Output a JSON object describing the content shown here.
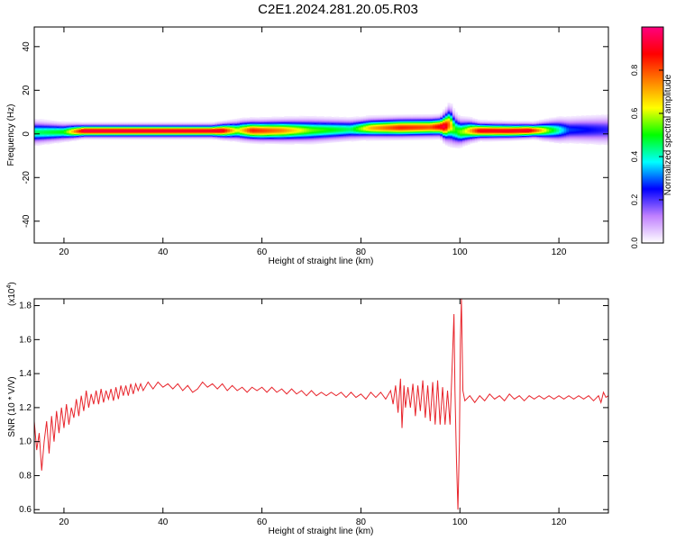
{
  "title": "C2E1.2024.281.20.05.R03",
  "colors": {
    "snr_line": "#e8242b",
    "background": "#ffffff",
    "colorbar_stops": [
      "#ffffff",
      "#c080ff",
      "#0000ff",
      "#00ffff",
      "#00ff00",
      "#ffff00",
      "#ff8000",
      "#ff0000",
      "#ff007f"
    ]
  },
  "chart_data": [
    {
      "type": "heatmap",
      "xlabel": "Height of straight line (km)",
      "ylabel": "Frequency (Hz)",
      "xlim": [
        14,
        130
      ],
      "ylim": [
        -50,
        49
      ],
      "xticks": [
        20,
        40,
        60,
        80,
        100,
        120
      ],
      "yticks": [
        -40,
        -20,
        0,
        20,
        40
      ],
      "colorbar": {
        "label": "Normalized spectral amplitude",
        "range": [
          0,
          1
        ],
        "ticks": [
          "0.0",
          "0.2",
          "0.4",
          "0.6",
          "0.8"
        ]
      },
      "ridge_center_hz": [
        [
          14,
          0.8
        ],
        [
          20,
          1.0
        ],
        [
          24,
          1.5
        ],
        [
          30,
          1.5
        ],
        [
          40,
          1.5
        ],
        [
          50,
          1.5
        ],
        [
          56,
          1.8
        ],
        [
          60,
          1.6
        ],
        [
          70,
          1.8
        ],
        [
          78,
          2.2
        ],
        [
          82,
          2.8
        ],
        [
          88,
          3.0
        ],
        [
          94,
          3.2
        ],
        [
          97,
          3.5
        ],
        [
          98,
          4.5
        ],
        [
          99,
          2.0
        ],
        [
          100,
          1.0
        ],
        [
          102,
          1.6
        ],
        [
          110,
          1.5
        ],
        [
          118,
          1.8
        ],
        [
          124,
          2.0
        ],
        [
          130,
          2.0
        ]
      ],
      "ridge_width_hz": [
        [
          14,
          3.5
        ],
        [
          24,
          2.0
        ],
        [
          50,
          2.0
        ],
        [
          56,
          3.0
        ],
        [
          70,
          3.5
        ],
        [
          80,
          3.0
        ],
        [
          96,
          3.0
        ],
        [
          98,
          5.5
        ],
        [
          100,
          4.0
        ],
        [
          104,
          2.5
        ],
        [
          115,
          2.2
        ],
        [
          120,
          3.5
        ],
        [
          130,
          4.5
        ]
      ],
      "ridge_peak_amplitude": [
        [
          14,
          0.45
        ],
        [
          20,
          0.5
        ],
        [
          24,
          0.95
        ],
        [
          52,
          0.92
        ],
        [
          55,
          0.6
        ],
        [
          58,
          0.85
        ],
        [
          64,
          0.75
        ],
        [
          70,
          0.55
        ],
        [
          78,
          0.45
        ],
        [
          82,
          0.7
        ],
        [
          88,
          0.85
        ],
        [
          94,
          0.8
        ],
        [
          97,
          0.95
        ],
        [
          99,
          0.5
        ],
        [
          101,
          0.6
        ],
        [
          104,
          0.9
        ],
        [
          114,
          0.92
        ],
        [
          118,
          0.55
        ],
        [
          122,
          0.28
        ],
        [
          130,
          0.22
        ]
      ]
    },
    {
      "type": "line",
      "xlabel": "Height of straight line (km)",
      "ylabel": "SNR (10 * V/V)",
      "multiplier_label": "(x10",
      "multiplier_exponent": "4",
      "multiplier_close": ")",
      "xlim": [
        14,
        130
      ],
      "ylim": [
        0.58,
        1.84
      ],
      "xticks": [
        20,
        40,
        60,
        80,
        100,
        120
      ],
      "yticks": [
        "0.6",
        "0.8",
        "1.0",
        "1.2",
        "1.4",
        "1.6",
        "1.8"
      ],
      "series": [
        {
          "values": [
            [
              14,
              1.12
            ],
            [
              14.5,
              0.95
            ],
            [
              15,
              1.05
            ],
            [
              15.5,
              0.83
            ],
            [
              16,
              1.0
            ],
            [
              16.5,
              1.12
            ],
            [
              17,
              0.93
            ],
            [
              17.5,
              1.15
            ],
            [
              18,
              1.0
            ],
            [
              18.5,
              1.18
            ],
            [
              19,
              1.05
            ],
            [
              19.5,
              1.2
            ],
            [
              20,
              1.08
            ],
            [
              20.5,
              1.22
            ],
            [
              21,
              1.1
            ],
            [
              21.5,
              1.2
            ],
            [
              22,
              1.14
            ],
            [
              22.5,
              1.25
            ],
            [
              23,
              1.15
            ],
            [
              23.5,
              1.27
            ],
            [
              24,
              1.18
            ],
            [
              24.5,
              1.3
            ],
            [
              25,
              1.2
            ],
            [
              25.5,
              1.28
            ],
            [
              26,
              1.22
            ],
            [
              26.5,
              1.3
            ],
            [
              27,
              1.22
            ],
            [
              27.5,
              1.31
            ],
            [
              28,
              1.23
            ],
            [
              28.5,
              1.3
            ],
            [
              29,
              1.25
            ],
            [
              29.5,
              1.31
            ],
            [
              30,
              1.24
            ],
            [
              30.5,
              1.32
            ],
            [
              31,
              1.25
            ],
            [
              31.5,
              1.33
            ],
            [
              32,
              1.27
            ],
            [
              32.5,
              1.33
            ],
            [
              33,
              1.27
            ],
            [
              33.5,
              1.34
            ],
            [
              34,
              1.28
            ],
            [
              34.5,
              1.34
            ],
            [
              35,
              1.3
            ],
            [
              35.5,
              1.34
            ],
            [
              36,
              1.3
            ],
            [
              37,
              1.35
            ],
            [
              38,
              1.31
            ],
            [
              39,
              1.35
            ],
            [
              40,
              1.32
            ],
            [
              41,
              1.34
            ],
            [
              42,
              1.31
            ],
            [
              43,
              1.34
            ],
            [
              44,
              1.3
            ],
            [
              45,
              1.33
            ],
            [
              46,
              1.29
            ],
            [
              47,
              1.31
            ],
            [
              48,
              1.35
            ],
            [
              49,
              1.32
            ],
            [
              50,
              1.34
            ],
            [
              51,
              1.31
            ],
            [
              52,
              1.34
            ],
            [
              53,
              1.3
            ],
            [
              54,
              1.33
            ],
            [
              55,
              1.3
            ],
            [
              56,
              1.32
            ],
            [
              57,
              1.29
            ],
            [
              58,
              1.32
            ],
            [
              59,
              1.3
            ],
            [
              60,
              1.32
            ],
            [
              61,
              1.29
            ],
            [
              62,
              1.32
            ],
            [
              63,
              1.29
            ],
            [
              64,
              1.31
            ],
            [
              65,
              1.28
            ],
            [
              66,
              1.31
            ],
            [
              67,
              1.28
            ],
            [
              68,
              1.3
            ],
            [
              69,
              1.27
            ],
            [
              70,
              1.3
            ],
            [
              71,
              1.27
            ],
            [
              72,
              1.29
            ],
            [
              73,
              1.27
            ],
            [
              74,
              1.29
            ],
            [
              75,
              1.27
            ],
            [
              76,
              1.29
            ],
            [
              77,
              1.26
            ],
            [
              78,
              1.29
            ],
            [
              79,
              1.26
            ],
            [
              80,
              1.28
            ],
            [
              81,
              1.25
            ],
            [
              82,
              1.29
            ],
            [
              83,
              1.26
            ],
            [
              84,
              1.29
            ],
            [
              85,
              1.25
            ],
            [
              86,
              1.3
            ],
            [
              86.5,
              1.22
            ],
            [
              87,
              1.33
            ],
            [
              87.5,
              1.17
            ],
            [
              88,
              1.37
            ],
            [
              88.3,
              1.08
            ],
            [
              88.7,
              1.33
            ],
            [
              89,
              1.2
            ],
            [
              89.5,
              1.32
            ],
            [
              90,
              1.2
            ],
            [
              90.5,
              1.34
            ],
            [
              91,
              1.15
            ],
            [
              91.5,
              1.33
            ],
            [
              92,
              1.18
            ],
            [
              92.5,
              1.36
            ],
            [
              93,
              1.14
            ],
            [
              93.5,
              1.33
            ],
            [
              94,
              1.12
            ],
            [
              94.5,
              1.35
            ],
            [
              95,
              1.1
            ],
            [
              95.5,
              1.36
            ],
            [
              96,
              1.1
            ],
            [
              96.5,
              1.32
            ],
            [
              97,
              1.1
            ],
            [
              97.5,
              1.3
            ],
            [
              98,
              1.1
            ],
            [
              98.5,
              1.5
            ],
            [
              98.8,
              1.75
            ],
            [
              99.0,
              1.3
            ],
            [
              99.3,
              0.9
            ],
            [
              99.6,
              0.6
            ],
            [
              99.9,
              1.0
            ],
            [
              100.1,
              1.6
            ],
            [
              100.3,
              1.84
            ],
            [
              100.6,
              1.3
            ],
            [
              101,
              1.24
            ],
            [
              102,
              1.27
            ],
            [
              103,
              1.23
            ],
            [
              104,
              1.27
            ],
            [
              105,
              1.24
            ],
            [
              106,
              1.28
            ],
            [
              107,
              1.25
            ],
            [
              108,
              1.27
            ],
            [
              109,
              1.24
            ],
            [
              110,
              1.28
            ],
            [
              111,
              1.25
            ],
            [
              112,
              1.27
            ],
            [
              113,
              1.24
            ],
            [
              114,
              1.27
            ],
            [
              115,
              1.25
            ],
            [
              116,
              1.27
            ],
            [
              117,
              1.25
            ],
            [
              118,
              1.27
            ],
            [
              119,
              1.25
            ],
            [
              120,
              1.27
            ],
            [
              121,
              1.25
            ],
            [
              122,
              1.27
            ],
            [
              123,
              1.25
            ],
            [
              124,
              1.27
            ],
            [
              125,
              1.25
            ],
            [
              126,
              1.27
            ],
            [
              127,
              1.24
            ],
            [
              128,
              1.27
            ],
            [
              128.5,
              1.23
            ],
            [
              129,
              1.29
            ],
            [
              129.5,
              1.26
            ],
            [
              130,
              1.27
            ]
          ]
        }
      ]
    }
  ]
}
